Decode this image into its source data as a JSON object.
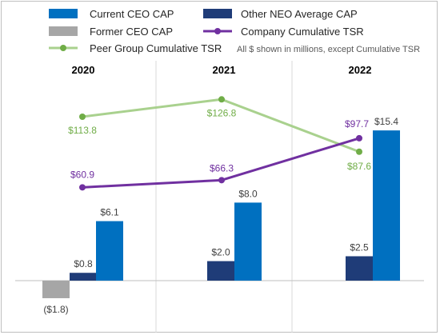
{
  "chart_data": {
    "type": "bar",
    "categories": [
      "2020",
      "2021",
      "2022"
    ],
    "note": "All $ shown in millions, except Cumulative TSR",
    "series": [
      {
        "name": "Current CEO CAP",
        "kind": "bar",
        "color": "#0070c0",
        "values": [
          6.1,
          8.0,
          15.4
        ],
        "labels": [
          "$6.1",
          "$8.0",
          "$15.4"
        ]
      },
      {
        "name": "Other NEO Average CAP",
        "kind": "bar",
        "color": "#1f3c78",
        "values": [
          0.8,
          2.0,
          2.5
        ],
        "labels": [
          "$0.8",
          "$2.0",
          "$2.5"
        ]
      },
      {
        "name": "Former CEO CAP",
        "kind": "bar",
        "color": "#a6a6a6",
        "values": [
          -1.8,
          null,
          null
        ],
        "labels": [
          "($1.8)",
          "",
          ""
        ]
      },
      {
        "name": "Company Cumulative TSR",
        "kind": "line",
        "color": "#7030a0",
        "values": [
          60.9,
          66.3,
          97.7
        ],
        "labels": [
          "$60.9",
          "$66.3",
          "$97.7"
        ]
      },
      {
        "name": "Peer Group Cumulative TSR",
        "kind": "line",
        "color": "#a9d18e",
        "values": [
          113.8,
          126.8,
          87.6
        ],
        "labels": [
          "$113.8",
          "$126.8",
          "$87.6"
        ]
      }
    ],
    "label_colors": {
      "bar": "#404040",
      "company": "#7030a0",
      "peer": "#70ad47"
    },
    "peer_marker_color": "#70ad47",
    "grid": false,
    "legend_position": "top"
  }
}
